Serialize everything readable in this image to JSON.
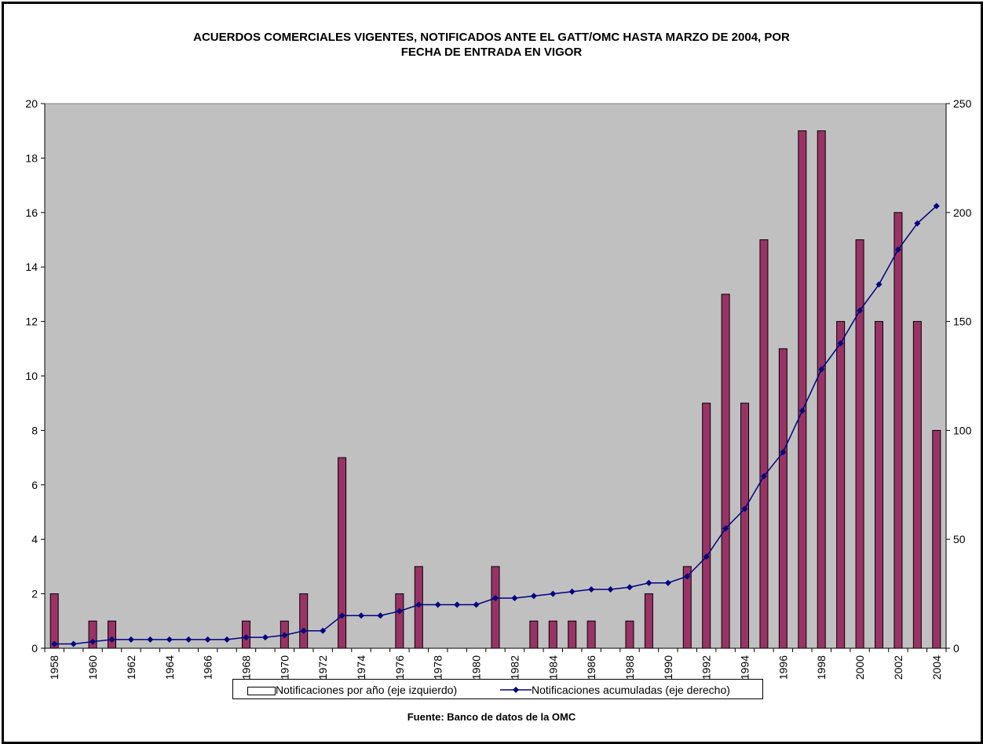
{
  "chart_data": {
    "type": "bar",
    "title_line1": "ACUERDOS COMERCIALES VIGENTES, NOTIFICADOS ANTE EL GATT/OMC HASTA MARZO DE 2004, POR",
    "title_line2": "FECHA DE ENTRADA EN VIGOR",
    "source": "Fuente: Banco de datos de la OMC",
    "x": [
      1958,
      1959,
      1960,
      1961,
      1962,
      1963,
      1964,
      1965,
      1966,
      1967,
      1968,
      1969,
      1970,
      1971,
      1972,
      1973,
      1974,
      1975,
      1976,
      1977,
      1978,
      1979,
      1980,
      1981,
      1982,
      1983,
      1984,
      1985,
      1986,
      1987,
      1988,
      1989,
      1990,
      1991,
      1992,
      1993,
      1994,
      1995,
      1996,
      1997,
      1998,
      1999,
      2000,
      2001,
      2002,
      2003,
      2004
    ],
    "x_tick_labels": [
      "1958",
      "1960",
      "1962",
      "1964",
      "1966",
      "1968",
      "1970",
      "1972",
      "1974",
      "1976",
      "1978",
      "1980",
      "1982",
      "1984",
      "1986",
      "1988",
      "1990",
      "1992",
      "1994",
      "1996",
      "1998",
      "2000",
      "2002",
      "2004"
    ],
    "y_left_ticks": [
      "0",
      "2",
      "4",
      "6",
      "8",
      "10",
      "12",
      "14",
      "16",
      "18",
      "20"
    ],
    "y_right_ticks": [
      "0",
      "50",
      "100",
      "150",
      "200",
      "250"
    ],
    "ylim_left": [
      0,
      20
    ],
    "ylim_right": [
      0,
      250
    ],
    "grid": false,
    "legend_position": "bottom",
    "series": [
      {
        "name": "Notificaciones por año (eje izquierdo)",
        "type": "bar",
        "axis": "left",
        "color": "#993366",
        "values": [
          2,
          0,
          1,
          1,
          0,
          0,
          0,
          0,
          0,
          0,
          1,
          0,
          1,
          2,
          0,
          7,
          0,
          0,
          2,
          3,
          0,
          0,
          0,
          3,
          0,
          1,
          1,
          1,
          1,
          0,
          1,
          2,
          0,
          3,
          9,
          13,
          9,
          15,
          11,
          19,
          19,
          12,
          15,
          12,
          16,
          12,
          8
        ]
      },
      {
        "name": "Notificaciones acumuladas (eje derecho)",
        "type": "line",
        "axis": "right",
        "color": "#000080",
        "values": [
          2,
          2,
          3,
          4,
          4,
          4,
          4,
          4,
          4,
          4,
          5,
          5,
          6,
          8,
          8,
          15,
          15,
          15,
          17,
          20,
          20,
          20,
          20,
          23,
          23,
          24,
          25,
          26,
          27,
          27,
          28,
          30,
          30,
          33,
          42,
          55,
          64,
          79,
          90,
          109,
          128,
          140,
          155,
          167,
          183,
          195,
          203
        ]
      }
    ],
    "plot_background": "#c0c0c0"
  }
}
